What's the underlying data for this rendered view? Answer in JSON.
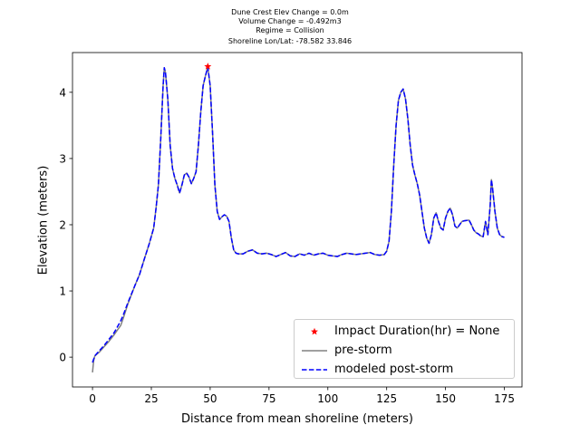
{
  "title_lines": [
    "Dune Crest Elev Change = 0.0m",
    "Volume Change = -0.492m3",
    "Regime = Collision",
    "Shoreline Lon/Lat: -78.582 33.846"
  ],
  "chart_data": {
    "type": "line",
    "xlabel": "Distance from mean shoreline (meters)",
    "ylabel": "Elevation (meters)",
    "xlim": [
      -8.5,
      182.5
    ],
    "ylim": [
      -0.45,
      4.6
    ],
    "x_ticks": [
      0,
      25,
      50,
      75,
      100,
      125,
      150,
      175
    ],
    "y_ticks": [
      0,
      1,
      2,
      3,
      4
    ],
    "grid": false,
    "legend_position": "lower-right",
    "series": [
      {
        "name": "pre-storm",
        "color": "#808080",
        "style": "solid",
        "points": [
          [
            0,
            -0.23
          ],
          [
            0.5,
            -0.05
          ],
          [
            1,
            0.02
          ],
          [
            3,
            0.08
          ],
          [
            5,
            0.16
          ],
          [
            7,
            0.24
          ],
          [
            9,
            0.33
          ],
          [
            10,
            0.38
          ],
          [
            12,
            0.48
          ],
          [
            13,
            0.58
          ],
          [
            15,
            0.8
          ],
          [
            18,
            1.08
          ],
          [
            20,
            1.25
          ],
          [
            22,
            1.48
          ],
          [
            24,
            1.7
          ],
          [
            26,
            1.95
          ],
          [
            27,
            2.25
          ],
          [
            28,
            2.6
          ],
          [
            29,
            3.3
          ],
          [
            30,
            4.1
          ],
          [
            30.5,
            4.37
          ],
          [
            31,
            4.3
          ],
          [
            32,
            3.9
          ],
          [
            33,
            3.2
          ],
          [
            34,
            2.85
          ],
          [
            35,
            2.7
          ],
          [
            36,
            2.6
          ],
          [
            37,
            2.48
          ],
          [
            38,
            2.6
          ],
          [
            39,
            2.75
          ],
          [
            40,
            2.78
          ],
          [
            41,
            2.72
          ],
          [
            42,
            2.62
          ],
          [
            43,
            2.7
          ],
          [
            44,
            2.8
          ],
          [
            45,
            3.2
          ],
          [
            46,
            3.7
          ],
          [
            47,
            4.1
          ],
          [
            48,
            4.25
          ],
          [
            49,
            4.38
          ],
          [
            50,
            4.1
          ],
          [
            51,
            3.4
          ],
          [
            52,
            2.6
          ],
          [
            53,
            2.2
          ],
          [
            54,
            2.08
          ],
          [
            55,
            2.12
          ],
          [
            56,
            2.15
          ],
          [
            57,
            2.13
          ],
          [
            58,
            2.05
          ],
          [
            59,
            1.8
          ],
          [
            60,
            1.62
          ],
          [
            61,
            1.57
          ],
          [
            62,
            1.56
          ],
          [
            64,
            1.56
          ],
          [
            66,
            1.6
          ],
          [
            68,
            1.62
          ],
          [
            70,
            1.57
          ],
          [
            72,
            1.56
          ],
          [
            74,
            1.57
          ],
          [
            76,
            1.55
          ],
          [
            78,
            1.52
          ],
          [
            80,
            1.55
          ],
          [
            82,
            1.58
          ],
          [
            84,
            1.53
          ],
          [
            86,
            1.52
          ],
          [
            88,
            1.56
          ],
          [
            90,
            1.54
          ],
          [
            92,
            1.57
          ],
          [
            94,
            1.54
          ],
          [
            96,
            1.56
          ],
          [
            98,
            1.57
          ],
          [
            100,
            1.54
          ],
          [
            102,
            1.53
          ],
          [
            104,
            1.52
          ],
          [
            106,
            1.55
          ],
          [
            108,
            1.57
          ],
          [
            110,
            1.56
          ],
          [
            112,
            1.55
          ],
          [
            114,
            1.56
          ],
          [
            116,
            1.57
          ],
          [
            118,
            1.58
          ],
          [
            120,
            1.55
          ],
          [
            122,
            1.54
          ],
          [
            124,
            1.55
          ],
          [
            125,
            1.6
          ],
          [
            126,
            1.75
          ],
          [
            127,
            2.2
          ],
          [
            128,
            2.9
          ],
          [
            129,
            3.5
          ],
          [
            130,
            3.88
          ],
          [
            131,
            4.0
          ],
          [
            132,
            4.05
          ],
          [
            133,
            3.9
          ],
          [
            134,
            3.6
          ],
          [
            135,
            3.2
          ],
          [
            136,
            2.9
          ],
          [
            137,
            2.75
          ],
          [
            138,
            2.62
          ],
          [
            139,
            2.45
          ],
          [
            140,
            2.2
          ],
          [
            141,
            1.95
          ],
          [
            142,
            1.8
          ],
          [
            143,
            1.72
          ],
          [
            144,
            1.85
          ],
          [
            145,
            2.1
          ],
          [
            146,
            2.18
          ],
          [
            147,
            2.05
          ],
          [
            148,
            1.95
          ],
          [
            149,
            1.92
          ],
          [
            150,
            2.1
          ],
          [
            151,
            2.2
          ],
          [
            152,
            2.25
          ],
          [
            153,
            2.15
          ],
          [
            154,
            1.98
          ],
          [
            155,
            1.95
          ],
          [
            156,
            2.0
          ],
          [
            157,
            2.05
          ],
          [
            158,
            2.06
          ],
          [
            160,
            2.07
          ],
          [
            161,
            2.0
          ],
          [
            162,
            1.92
          ],
          [
            163,
            1.88
          ],
          [
            164,
            1.86
          ],
          [
            165,
            1.83
          ],
          [
            166,
            1.82
          ],
          [
            167,
            2.05
          ],
          [
            168,
            1.85
          ],
          [
            169,
            2.3
          ],
          [
            169.5,
            2.68
          ],
          [
            170,
            2.55
          ],
          [
            171,
            2.2
          ],
          [
            172,
            1.95
          ],
          [
            173,
            1.85
          ],
          [
            174,
            1.82
          ],
          [
            175,
            1.81
          ]
        ]
      },
      {
        "name": "modeled post-storm",
        "color": "#0000ff",
        "style": "dashed",
        "points": [
          [
            0,
            -0.08
          ],
          [
            0.5,
            -0.03
          ],
          [
            1,
            0.02
          ],
          [
            3,
            0.1
          ],
          [
            5,
            0.18
          ],
          [
            7,
            0.27
          ],
          [
            9,
            0.36
          ],
          [
            10,
            0.42
          ],
          [
            12,
            0.55
          ],
          [
            13,
            0.63
          ],
          [
            15,
            0.82
          ],
          [
            18,
            1.08
          ],
          [
            20,
            1.25
          ],
          [
            22,
            1.48
          ],
          [
            24,
            1.7
          ],
          [
            26,
            1.95
          ],
          [
            27,
            2.25
          ],
          [
            28,
            2.6
          ],
          [
            29,
            3.3
          ],
          [
            30,
            4.1
          ],
          [
            30.5,
            4.37
          ],
          [
            31,
            4.3
          ],
          [
            32,
            3.9
          ],
          [
            33,
            3.2
          ],
          [
            34,
            2.85
          ],
          [
            35,
            2.7
          ],
          [
            36,
            2.6
          ],
          [
            37,
            2.48
          ],
          [
            38,
            2.6
          ],
          [
            39,
            2.75
          ],
          [
            40,
            2.78
          ],
          [
            41,
            2.72
          ],
          [
            42,
            2.62
          ],
          [
            43,
            2.7
          ],
          [
            44,
            2.8
          ],
          [
            45,
            3.2
          ],
          [
            46,
            3.7
          ],
          [
            47,
            4.1
          ],
          [
            48,
            4.25
          ],
          [
            49,
            4.38
          ],
          [
            50,
            4.1
          ],
          [
            51,
            3.4
          ],
          [
            52,
            2.6
          ],
          [
            53,
            2.2
          ],
          [
            54,
            2.08
          ],
          [
            55,
            2.12
          ],
          [
            56,
            2.15
          ],
          [
            57,
            2.13
          ],
          [
            58,
            2.05
          ],
          [
            59,
            1.8
          ],
          [
            60,
            1.62
          ],
          [
            61,
            1.57
          ],
          [
            62,
            1.56
          ],
          [
            64,
            1.56
          ],
          [
            66,
            1.6
          ],
          [
            68,
            1.62
          ],
          [
            70,
            1.57
          ],
          [
            72,
            1.56
          ],
          [
            74,
            1.57
          ],
          [
            76,
            1.55
          ],
          [
            78,
            1.52
          ],
          [
            80,
            1.55
          ],
          [
            82,
            1.58
          ],
          [
            84,
            1.53
          ],
          [
            86,
            1.52
          ],
          [
            88,
            1.56
          ],
          [
            90,
            1.54
          ],
          [
            92,
            1.57
          ],
          [
            94,
            1.54
          ],
          [
            96,
            1.56
          ],
          [
            98,
            1.57
          ],
          [
            100,
            1.54
          ],
          [
            102,
            1.53
          ],
          [
            104,
            1.52
          ],
          [
            106,
            1.55
          ],
          [
            108,
            1.57
          ],
          [
            110,
            1.56
          ],
          [
            112,
            1.55
          ],
          [
            114,
            1.56
          ],
          [
            116,
            1.57
          ],
          [
            118,
            1.58
          ],
          [
            120,
            1.55
          ],
          [
            122,
            1.54
          ],
          [
            124,
            1.55
          ],
          [
            125,
            1.6
          ],
          [
            126,
            1.75
          ],
          [
            127,
            2.2
          ],
          [
            128,
            2.9
          ],
          [
            129,
            3.5
          ],
          [
            130,
            3.88
          ],
          [
            131,
            4.0
          ],
          [
            132,
            4.05
          ],
          [
            133,
            3.9
          ],
          [
            134,
            3.6
          ],
          [
            135,
            3.2
          ],
          [
            136,
            2.9
          ],
          [
            137,
            2.75
          ],
          [
            138,
            2.62
          ],
          [
            139,
            2.45
          ],
          [
            140,
            2.2
          ],
          [
            141,
            1.95
          ],
          [
            142,
            1.8
          ],
          [
            143,
            1.72
          ],
          [
            144,
            1.85
          ],
          [
            145,
            2.1
          ],
          [
            146,
            2.18
          ],
          [
            147,
            2.05
          ],
          [
            148,
            1.95
          ],
          [
            149,
            1.92
          ],
          [
            150,
            2.1
          ],
          [
            151,
            2.2
          ],
          [
            152,
            2.25
          ],
          [
            153,
            2.15
          ],
          [
            154,
            1.98
          ],
          [
            155,
            1.95
          ],
          [
            156,
            2.0
          ],
          [
            157,
            2.05
          ],
          [
            158,
            2.06
          ],
          [
            160,
            2.07
          ],
          [
            161,
            2.0
          ],
          [
            162,
            1.92
          ],
          [
            163,
            1.88
          ],
          [
            164,
            1.86
          ],
          [
            165,
            1.83
          ],
          [
            166,
            1.82
          ],
          [
            167,
            2.05
          ],
          [
            168,
            1.85
          ],
          [
            169,
            2.3
          ],
          [
            169.5,
            2.68
          ],
          [
            170,
            2.55
          ],
          [
            171,
            2.2
          ],
          [
            172,
            1.95
          ],
          [
            173,
            1.85
          ],
          [
            174,
            1.82
          ],
          [
            175,
            1.81
          ]
        ]
      }
    ],
    "markers": [
      {
        "name": "Impact Duration(hr) = None",
        "x": 49,
        "y": 4.39,
        "color": "#ff0000",
        "symbol": "star"
      }
    ]
  },
  "legend": [
    {
      "label": "Impact Duration(hr) = None",
      "kind": "star",
      "color": "#ff0000"
    },
    {
      "label": "pre-storm",
      "kind": "solid",
      "color": "#808080"
    },
    {
      "label": "modeled post-storm",
      "kind": "dashed",
      "color": "#0000ff"
    }
  ]
}
